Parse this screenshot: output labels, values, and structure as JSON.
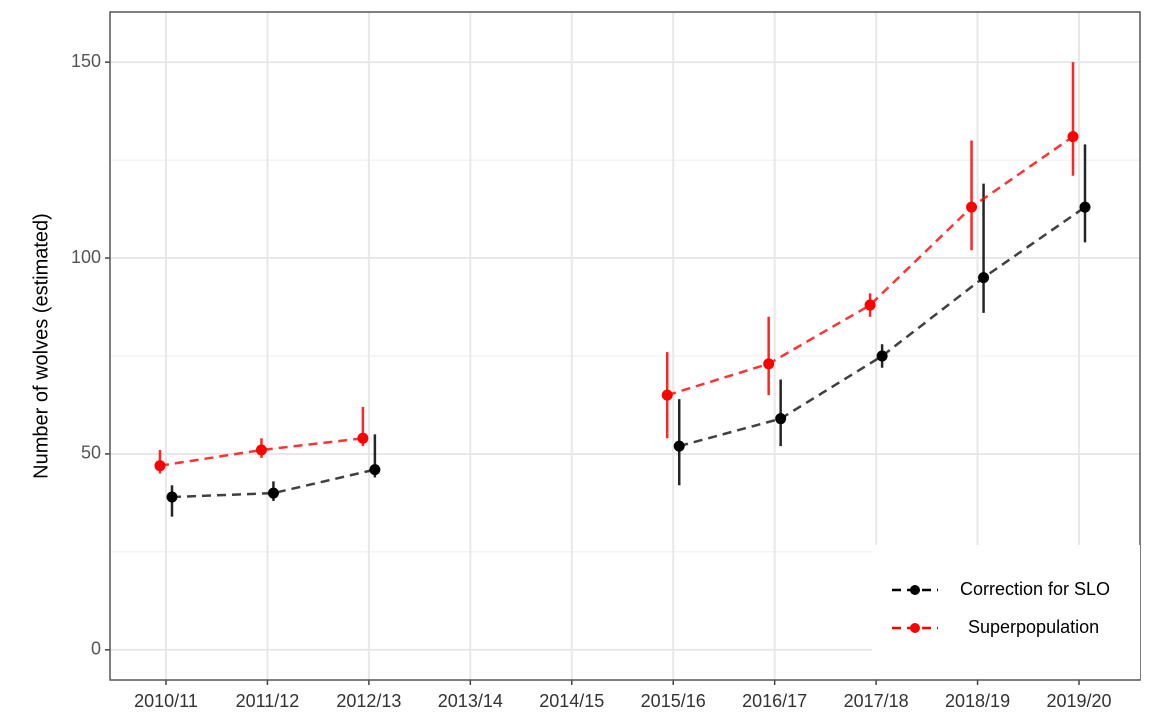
{
  "chart_data": {
    "type": "line",
    "ylabel": "Number of wolves (estimated)",
    "categories": [
      "2010/11",
      "2011/12",
      "2012/13",
      "2013/14",
      "2014/15",
      "2015/16",
      "2016/17",
      "2017/18",
      "2018/19",
      "2019/20"
    ],
    "series": [
      {
        "name": "Correction for SLO",
        "color": "#000000",
        "values": [
          39,
          40,
          46,
          null,
          null,
          52,
          59,
          75,
          95,
          113
        ],
        "lower": [
          34,
          38,
          44,
          null,
          null,
          42,
          52,
          72,
          86,
          104
        ],
        "upper": [
          42,
          43,
          55,
          null,
          null,
          64,
          69,
          78,
          119,
          129
        ]
      },
      {
        "name": "Superpopulation",
        "color": "#ff0000",
        "values": [
          47,
          51,
          54,
          null,
          null,
          65,
          73,
          88,
          113,
          131
        ],
        "lower": [
          45,
          49,
          52,
          null,
          null,
          54,
          65,
          85,
          102,
          121
        ],
        "upper": [
          51,
          54,
          62,
          null,
          null,
          76,
          85,
          91,
          130,
          150
        ]
      }
    ],
    "ylim": [
      -7.7,
      162.8
    ],
    "yticks": [
      0,
      50,
      100,
      150
    ],
    "minor_grid": [
      25,
      75,
      125
    ],
    "grid": true,
    "legend": "bottom-right"
  }
}
